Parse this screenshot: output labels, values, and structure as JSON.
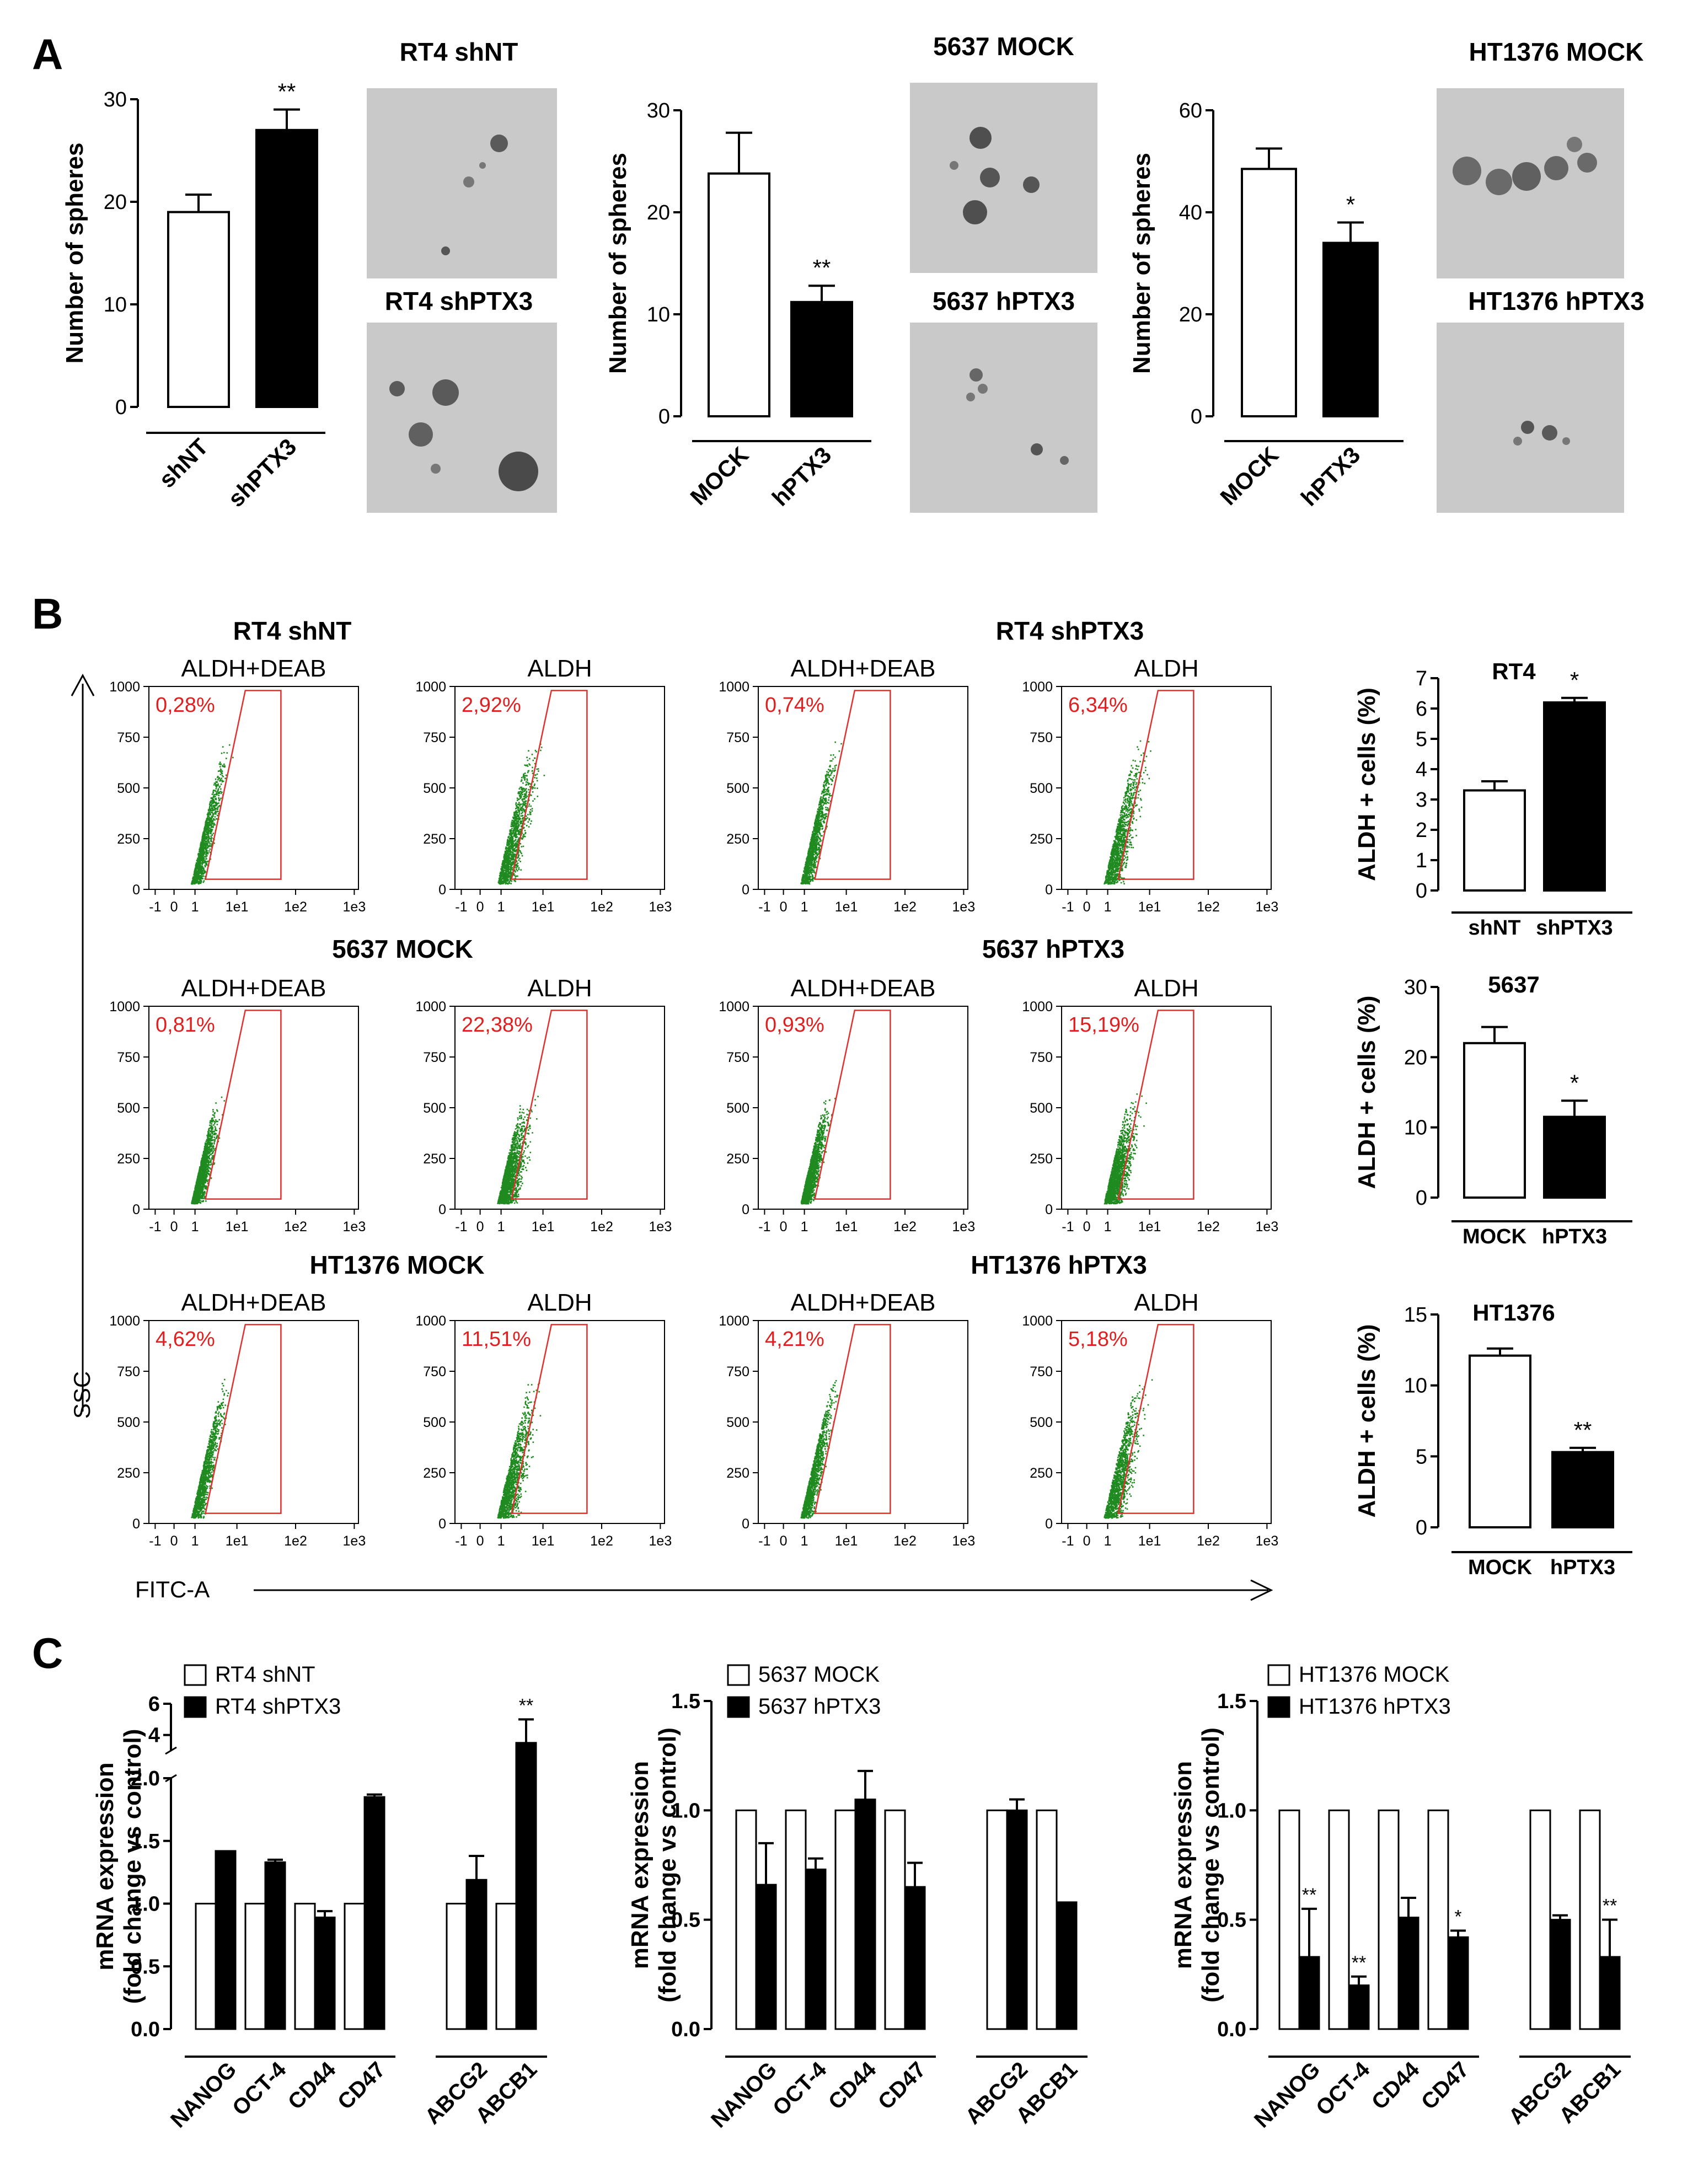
{
  "panel_letters": {
    "a": "A",
    "b": "B",
    "c": "C"
  },
  "colors": {
    "white_bar": "#ffffff",
    "black_bar": "#000000",
    "dots": "#1f8a1f",
    "gate": "#e03030",
    "pct": "#e02020"
  },
  "panel_a": {
    "titles": {
      "rt4_top": "RT4 shNT",
      "rt4_bottom": "RT4 shPTX3",
      "c5637_top": "5637 MOCK",
      "c5637_bottom": "5637 hPTX3",
      "ht_top": "HT1376 MOCK",
      "ht_bottom": "HT1376 hPTX3"
    }
  },
  "panel_b": {
    "axis_y": "SSC",
    "axis_x": "FITC-A",
    "y_ticks": [
      "1000",
      "750",
      "500",
      "250",
      "0"
    ],
    "x_ticks": [
      "-1",
      "0",
      "1",
      "1e1",
      "1e2",
      "1e3"
    ],
    "conditions": [
      "ALDH+DEAB",
      "ALDH",
      "ALDH+DEAB",
      "ALDH"
    ],
    "row_titles": [
      "RT4 shNT",
      "RT4 shPTX3",
      "5637 MOCK",
      "5637 hPTX3",
      "HT1376 MOCK",
      "HT1376 hPTX3"
    ],
    "percentages": [
      [
        "0,28%",
        "2,92%",
        "0,74%",
        "6,34%"
      ],
      [
        "0,81%",
        "22,38%",
        "0,93%",
        "15,19%"
      ],
      [
        "4,62%",
        "11,51%",
        "4,21%",
        "5,18%"
      ]
    ]
  },
  "chart_data": [
    {
      "type": "bar",
      "panel": "A",
      "title": "",
      "xlabel": "",
      "ylabel": "Number of spheres",
      "categories": [
        "shNT",
        "shPTX3"
      ],
      "values": [
        19,
        27
      ],
      "errors": [
        1.7,
        2
      ],
      "ylim": [
        0,
        30
      ],
      "yticks": [
        "0",
        "10",
        "20",
        "30"
      ],
      "significance": [
        "",
        "**"
      ]
    },
    {
      "type": "bar",
      "panel": "A",
      "title": "",
      "xlabel": "",
      "ylabel": "Number of spheres",
      "categories": [
        "MOCK",
        "hPTX3"
      ],
      "values": [
        23.8,
        11.2
      ],
      "errors": [
        4,
        1.6
      ],
      "ylim": [
        0,
        30
      ],
      "yticks": [
        "0",
        "10",
        "20",
        "30"
      ],
      "significance": [
        "",
        "**"
      ]
    },
    {
      "type": "bar",
      "panel": "A",
      "title": "",
      "xlabel": "",
      "ylabel": "Number of spheres",
      "categories": [
        "MOCK",
        "hPTX3"
      ],
      "values": [
        48.5,
        34
      ],
      "errors": [
        4,
        4
      ],
      "ylim": [
        0,
        60
      ],
      "yticks": [
        "0",
        "20",
        "40",
        "60"
      ],
      "significance": [
        "",
        "*"
      ]
    },
    {
      "type": "bar",
      "panel": "B",
      "title": "RT4",
      "xlabel": "",
      "ylabel": "ALDH + cells (%)",
      "categories": [
        "shNT",
        "shPTX3"
      ],
      "values": [
        3.3,
        6.2
      ],
      "errors": [
        0.3,
        0.15
      ],
      "ylim": [
        0,
        7
      ],
      "yticks": [
        "0",
        "1",
        "2",
        "3",
        "4",
        "5",
        "6",
        "7"
      ],
      "significance": [
        "",
        "*"
      ]
    },
    {
      "type": "bar",
      "panel": "B",
      "title": "5637",
      "xlabel": "",
      "ylabel": "ALDH + cells (%)",
      "categories": [
        "MOCK",
        "hPTX3"
      ],
      "values": [
        22,
        11.5
      ],
      "errors": [
        2.3,
        2.3
      ],
      "ylim": [
        0,
        30
      ],
      "yticks": [
        "0",
        "10",
        "20",
        "30"
      ],
      "significance": [
        "",
        "*"
      ]
    },
    {
      "type": "bar",
      "panel": "B",
      "title": "HT1376",
      "xlabel": "",
      "ylabel": "ALDH + cells (%)",
      "categories": [
        "MOCK",
        "hPTX3"
      ],
      "values": [
        12.1,
        5.3
      ],
      "errors": [
        0.5,
        0.3
      ],
      "ylim": [
        0,
        15
      ],
      "yticks": [
        "0",
        "5",
        "10",
        "15"
      ],
      "significance": [
        "",
        "**"
      ]
    },
    {
      "type": "bar",
      "panel": "C",
      "title": "",
      "xlabel": "",
      "ylabel": "mRNA expression (fold change vs control)",
      "categories": [
        "NANOG",
        "OCT-4",
        "CD44",
        "CD47",
        "ABCG2",
        "ABCB1"
      ],
      "series": [
        {
          "name": "RT4 shNT",
          "values": [
            1,
            1,
            1,
            1,
            1,
            1
          ],
          "errors": [
            0,
            0,
            0,
            0,
            0,
            0
          ]
        },
        {
          "name": "RT4 shPTX3",
          "values": [
            1.42,
            1.33,
            0.89,
            1.85,
            1.19,
            3.5
          ],
          "errors": [
            0,
            0.02,
            0.05,
            0.02,
            0.19,
            1.5
          ]
        }
      ],
      "ylim": [
        0,
        6
      ],
      "yticks": [
        "0.0",
        "0.5",
        "1.0",
        "1.5",
        "2.0",
        "4",
        "6"
      ],
      "axis_break": [
        2,
        3
      ],
      "significance": [
        "",
        "",
        "",
        "",
        "",
        "**"
      ]
    },
    {
      "type": "bar",
      "panel": "C",
      "title": "",
      "xlabel": "",
      "ylabel": "mRNA expression (fold change vs control)",
      "categories": [
        "NANOG",
        "OCT-4",
        "CD44",
        "CD47",
        "ABCG2",
        "ABCB1"
      ],
      "series": [
        {
          "name": "5637 MOCK",
          "values": [
            1,
            1,
            1,
            1,
            1,
            1
          ],
          "errors": [
            0,
            0,
            0,
            0,
            0,
            0
          ]
        },
        {
          "name": "5637 hPTX3",
          "values": [
            0.66,
            0.73,
            1.05,
            0.65,
            1,
            0.58
          ],
          "errors": [
            0.19,
            0.05,
            0.13,
            0.11,
            0.05,
            0
          ]
        }
      ],
      "ylim": [
        0,
        1.5
      ],
      "yticks": [
        "0.0",
        "0.5",
        "1.0",
        "1.5"
      ],
      "significance": [
        "",
        "",
        "",
        "",
        "",
        ""
      ]
    },
    {
      "type": "bar",
      "panel": "C",
      "title": "",
      "xlabel": "",
      "ylabel": "mRNA expression (fold change vs control)",
      "categories": [
        "NANOG",
        "OCT-4",
        "CD44",
        "CD47",
        "ABCG2",
        "ABCB1"
      ],
      "series": [
        {
          "name": "HT1376 MOCK",
          "values": [
            1,
            1,
            1,
            1,
            1,
            1
          ],
          "errors": [
            0,
            0,
            0,
            0,
            0,
            0
          ]
        },
        {
          "name": "HT1376 hPTX3",
          "values": [
            0.33,
            0.2,
            0.51,
            0.42,
            0.5,
            0.33
          ],
          "errors": [
            0.22,
            0.04,
            0.09,
            0.03,
            0.02,
            0.17
          ]
        }
      ],
      "ylim": [
        0,
        1.5
      ],
      "yticks": [
        "0.0",
        "0.5",
        "1.0",
        "1.5"
      ],
      "significance": [
        "**",
        "**",
        "",
        "*",
        "",
        "**"
      ]
    }
  ]
}
